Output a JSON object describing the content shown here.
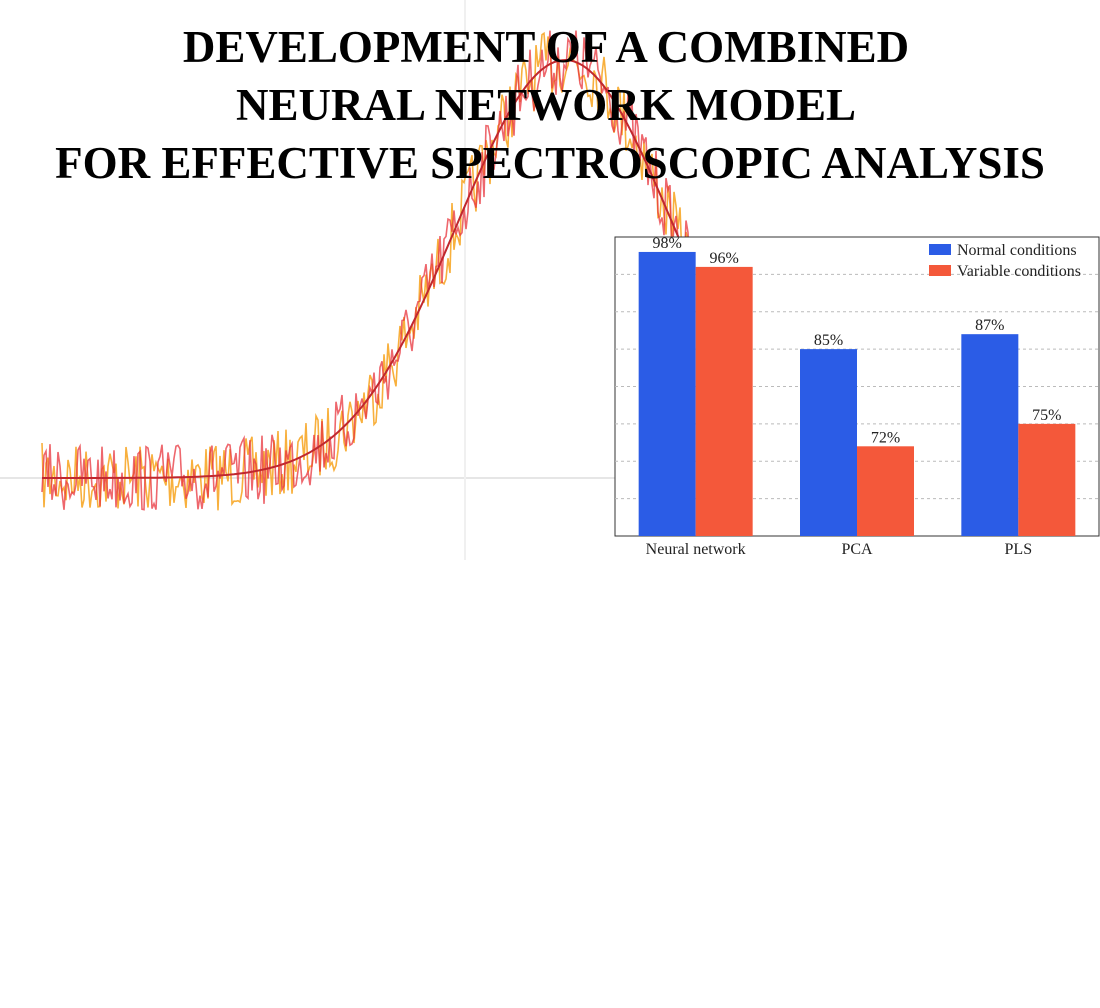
{
  "title": [
    "DEVELOPMENT OF A COMBINED",
    "NEURAL NETWORK MODEL",
    "FOR EFFECTIVE SPECTROSCOPIC ANALYSIS"
  ],
  "chart_data": {
    "type": "bar",
    "categories": [
      "Neural network",
      "PCA",
      "PLS"
    ],
    "series": [
      {
        "name": "Normal conditions",
        "color": "#2b5ce6",
        "values": [
          98,
          85,
          87
        ],
        "value_labels": [
          "98%",
          "85%",
          "87%"
        ]
      },
      {
        "name": "Variable conditions",
        "color": "#f4583a",
        "values": [
          96,
          72,
          75
        ],
        "value_labels": [
          "96%",
          "72%",
          "75%"
        ]
      }
    ],
    "ylim": [
      60,
      100
    ],
    "yticks": [
      65,
      70,
      75,
      80,
      85,
      90,
      95
    ],
    "grid": true,
    "legend": "upper right"
  }
}
